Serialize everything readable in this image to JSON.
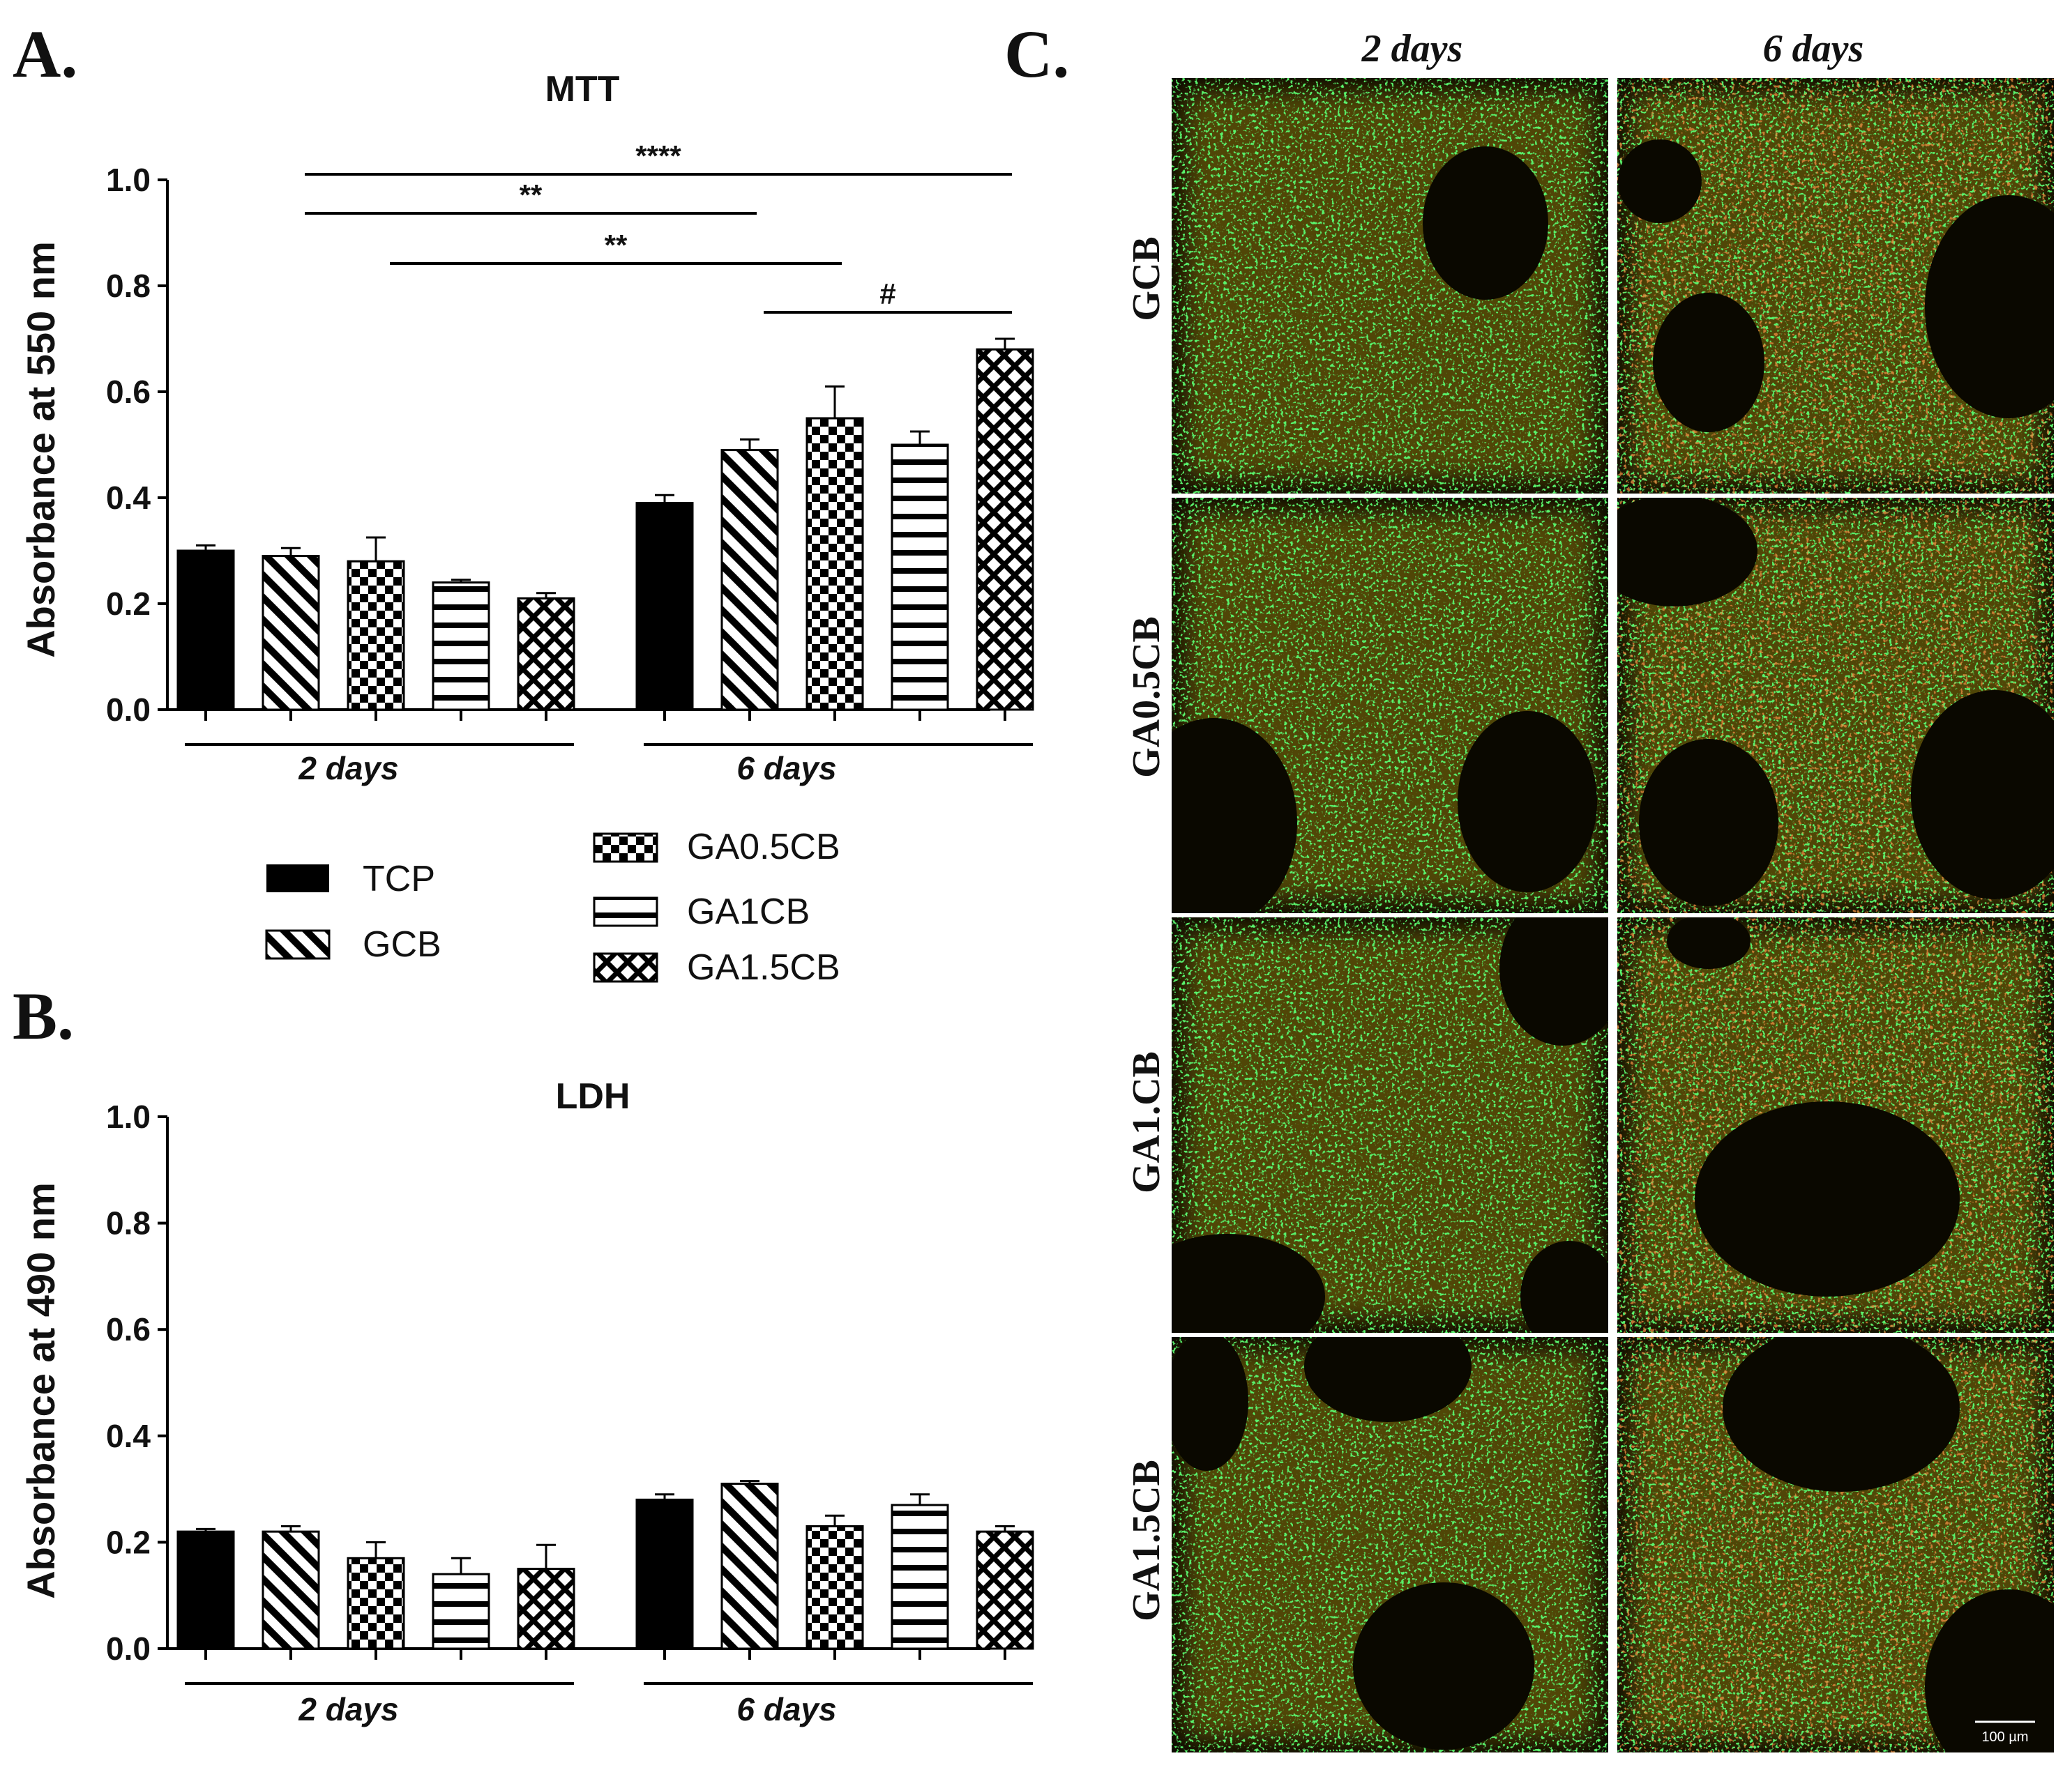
{
  "panels": {
    "A": "A.",
    "B": "B.",
    "C": "C."
  },
  "legend": [
    {
      "label": "TCP",
      "pattern": "solid"
    },
    {
      "label": "GCB",
      "pattern": "diag"
    },
    {
      "label": "GA0.5CB",
      "pattern": "checker"
    },
    {
      "label": "GA1CB",
      "pattern": "hlines"
    },
    {
      "label": "GA1.5CB",
      "pattern": "xhatch"
    }
  ],
  "chart_data": [
    {
      "type": "bar",
      "title": "MTT",
      "ylabel": "Absorbance at 550 nm",
      "ylim": [
        0,
        1.0
      ],
      "yticks": [
        "0.0",
        "0.2",
        "0.4",
        "0.6",
        "0.8",
        "1.0"
      ],
      "groups": [
        "2 days",
        "6  days"
      ],
      "series": [
        {
          "name": "TCP",
          "values": [
            0.3,
            0.39
          ],
          "errors": [
            0.01,
            0.015
          ]
        },
        {
          "name": "GCB",
          "values": [
            0.29,
            0.49
          ],
          "errors": [
            0.015,
            0.02
          ]
        },
        {
          "name": "GA0.5CB",
          "values": [
            0.28,
            0.55
          ],
          "errors": [
            0.045,
            0.06
          ]
        },
        {
          "name": "GA1CB",
          "values": [
            0.24,
            0.5
          ],
          "errors": [
            0.005,
            0.025
          ]
        },
        {
          "name": "GA1.5CB",
          "values": [
            0.21,
            0.68
          ],
          "errors": [
            0.01,
            0.02
          ]
        }
      ],
      "annotations": [
        {
          "text": "****",
          "from": [
            0,
            1
          ],
          "to": [
            1,
            4
          ]
        },
        {
          "text": "**",
          "from": [
            0,
            1
          ],
          "to": [
            1,
            1
          ]
        },
        {
          "text": "**",
          "from": [
            0,
            2
          ],
          "to": [
            1,
            2
          ]
        },
        {
          "text": "#",
          "from": [
            1,
            1
          ],
          "to": [
            1,
            4
          ]
        }
      ]
    },
    {
      "type": "bar",
      "title": "LDH",
      "ylabel": "Absorbance at 490 nm",
      "ylim": [
        0,
        1.0
      ],
      "yticks": [
        "0.0",
        "0.2",
        "0.4",
        "0.6",
        "0.8",
        "1.0"
      ],
      "groups": [
        "2 days",
        "6  days"
      ],
      "series": [
        {
          "name": "TCP",
          "values": [
            0.22,
            0.28
          ],
          "errors": [
            0.005,
            0.01
          ]
        },
        {
          "name": "GCB",
          "values": [
            0.22,
            0.31
          ],
          "errors": [
            0.01,
            0.005
          ]
        },
        {
          "name": "GA0.5CB",
          "values": [
            0.17,
            0.23
          ],
          "errors": [
            0.03,
            0.02
          ]
        },
        {
          "name": "GA1CB",
          "values": [
            0.14,
            0.27
          ],
          "errors": [
            0.03,
            0.02
          ]
        },
        {
          "name": "GA1.5CB",
          "values": [
            0.15,
            0.22
          ],
          "errors": [
            0.045,
            0.01
          ]
        }
      ]
    }
  ],
  "micrographs": {
    "columns": [
      "2 days",
      "6 days"
    ],
    "rows": [
      "GCB",
      "GA0.5CB",
      "GA1.CB",
      "GA1.5CB"
    ],
    "scale_bar": "100 µm",
    "colors": {
      "background": "#0a0800",
      "matrix": "#8a7a10",
      "live": "#22d82a",
      "dead": "#c83a14"
    }
  }
}
